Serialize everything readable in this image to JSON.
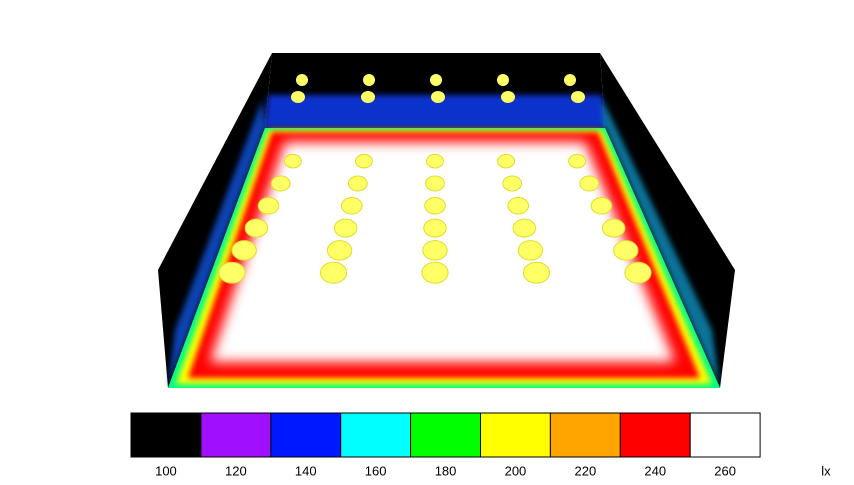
{
  "legend": {
    "values": [
      100,
      120,
      140,
      160,
      180,
      200,
      220,
      240,
      260
    ],
    "colors": [
      "#000000",
      "#a010ff",
      "#0018ff",
      "#00ffff",
      "#00ff00",
      "#ffff00",
      "#ffa500",
      "#ff0000",
      "#ffffff"
    ],
    "unit": "lx"
  }
}
